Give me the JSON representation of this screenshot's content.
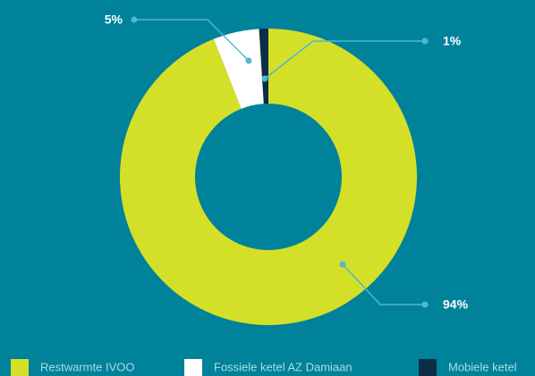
{
  "chart_data": {
    "type": "donut",
    "categories": [
      "Restwarmte IVOO",
      "Fossiele ketel AZ Damiaan",
      "Mobiele ketel"
    ],
    "values": [
      94,
      5,
      1
    ],
    "value_labels": [
      "94%",
      "5%",
      "1%"
    ],
    "colors": [
      "#d4df27",
      "#ffffff",
      "#0d2d45"
    ]
  }
}
